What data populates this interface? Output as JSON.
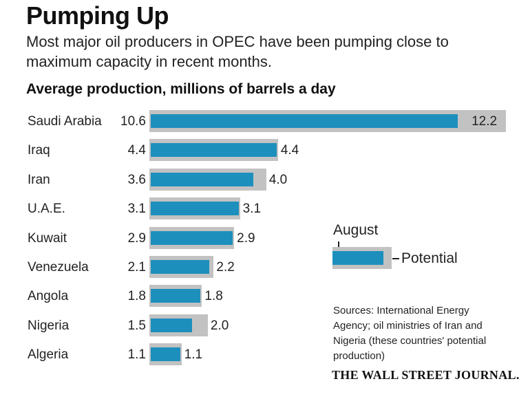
{
  "header": {
    "title": "Pumping Up",
    "subtitle": "Most major oil producers in OPEC have been pumping close to maximum capacity in recent months.",
    "chart_heading": "Average production, millions of barrels a day"
  },
  "legend": {
    "august_label": "August",
    "potential_label": "Potential"
  },
  "footer": {
    "sources": "Sources: International Energy Agency; oil ministries of Iran and Nigeria (these countries' potential production)",
    "brand": "THE WALL STREET JOURNAL."
  },
  "colors": {
    "august": "#1d8fbd",
    "potential": "#c2c2c2"
  },
  "chart_data": {
    "type": "bar",
    "orientation": "horizontal",
    "title": "Average production, millions of barrels a day",
    "categories": [
      "Saudi Arabia",
      "Iraq",
      "Iran",
      "U.A.E.",
      "Kuwait",
      "Venezuela",
      "Angola",
      "Nigeria",
      "Algeria"
    ],
    "series": [
      {
        "name": "August",
        "values": [
          10.6,
          4.4,
          3.6,
          3.1,
          2.9,
          2.1,
          1.8,
          1.5,
          1.1
        ]
      },
      {
        "name": "Potential",
        "values": [
          12.2,
          4.4,
          4.0,
          3.1,
          2.9,
          2.2,
          1.8,
          2.0,
          1.1
        ]
      }
    ],
    "value_labels": {
      "August": [
        "10.6",
        "4.4",
        "3.6",
        "3.1",
        "2.9",
        "2.1",
        "1.8",
        "1.5",
        "1.1"
      ],
      "Potential": [
        "12.2",
        "4.4",
        "4.0",
        "3.1",
        "2.9",
        "2.2",
        "1.8",
        "2.0",
        "1.1"
      ]
    },
    "xlim": [
      0,
      12.2
    ],
    "grid": false,
    "legend_position": "right"
  }
}
